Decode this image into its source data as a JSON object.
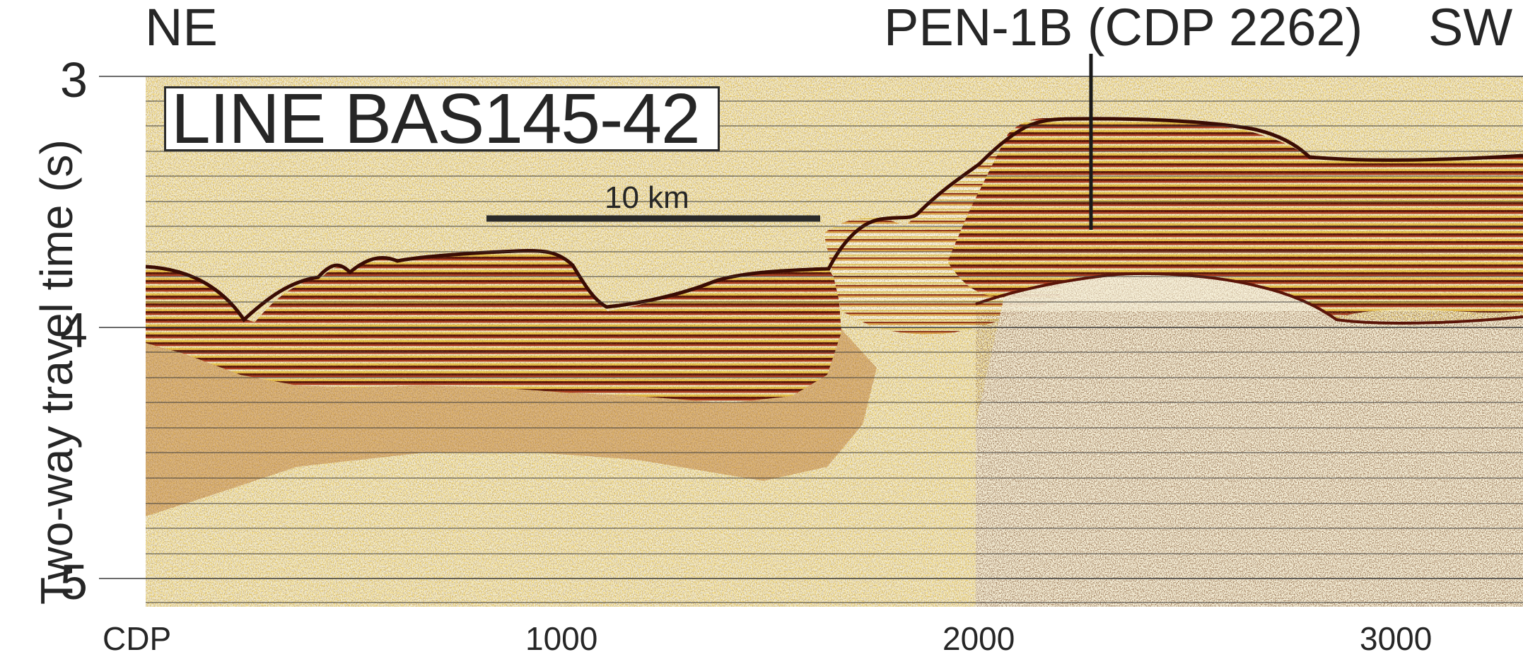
{
  "figure": {
    "direction_left": "NE",
    "direction_right": "SW",
    "well_label": "PEN-1B (CDP 2262)",
    "line_title": "LINE BAS145-42",
    "scale_bar_label": "10 km",
    "y_axis_title": "Two-way travel time (s)",
    "y_ticks": [
      "3",
      "4",
      "5"
    ],
    "x_ticks": [
      "CDP",
      "1000",
      "2000",
      "3000"
    ],
    "well_cdp": 2262,
    "scale_bar_km": 10,
    "colors": {
      "reflector_dark": "#5a1408",
      "reflector_red": "#a92a12",
      "reflector_orange": "#de8a2b",
      "reflector_yellow": "#efcf52",
      "background_pale": "#f4eed2",
      "grid": "#3a3a3a"
    }
  }
}
